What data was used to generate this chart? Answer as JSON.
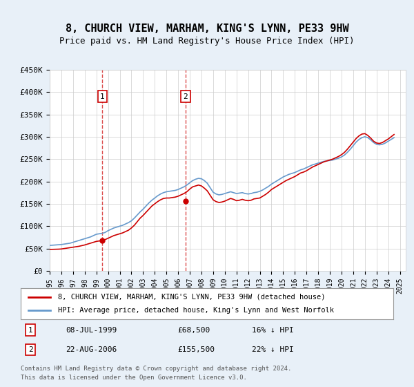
{
  "title": "8, CHURCH VIEW, MARHAM, KING'S LYNN, PE33 9HW",
  "subtitle": "Price paid vs. HM Land Registry's House Price Index (HPI)",
  "ylabel_ticks": [
    "£0",
    "£50K",
    "£100K",
    "£150K",
    "£200K",
    "£250K",
    "£300K",
    "£350K",
    "£400K",
    "£450K"
  ],
  "ytick_values": [
    0,
    50000,
    100000,
    150000,
    200000,
    250000,
    300000,
    350000,
    400000,
    450000
  ],
  "ylim": [
    0,
    450000
  ],
  "xlim_start": 1995.0,
  "xlim_end": 2025.5,
  "xtick_years": [
    1995,
    1996,
    1997,
    1998,
    1999,
    2000,
    2001,
    2002,
    2003,
    2004,
    2005,
    2006,
    2007,
    2008,
    2009,
    2010,
    2011,
    2012,
    2013,
    2014,
    2015,
    2016,
    2017,
    2018,
    2019,
    2020,
    2021,
    2022,
    2023,
    2024,
    2025
  ],
  "red_line_color": "#cc0000",
  "blue_line_color": "#6699cc",
  "background_color": "#e8f0f8",
  "plot_bg_color": "#ffffff",
  "legend_line1": "8, CHURCH VIEW, MARHAM, KING'S LYNN, PE33 9HW (detached house)",
  "legend_line2": "HPI: Average price, detached house, King's Lynn and West Norfolk",
  "note1_num": "1",
  "note1_date": "08-JUL-1999",
  "note1_price": "£68,500",
  "note1_hpi": "16% ↓ HPI",
  "note2_num": "2",
  "note2_date": "22-AUG-2006",
  "note2_price": "£155,500",
  "note2_hpi": "22% ↓ HPI",
  "footer": "Contains HM Land Registry data © Crown copyright and database right 2024.\nThis data is licensed under the Open Government Licence v3.0.",
  "marker1_x": 1999.52,
  "marker1_y": 68500,
  "marker2_x": 2006.64,
  "marker2_y": 155500,
  "hpi_data_x": [
    1995.0,
    1995.25,
    1995.5,
    1995.75,
    1996.0,
    1996.25,
    1996.5,
    1996.75,
    1997.0,
    1997.25,
    1997.5,
    1997.75,
    1998.0,
    1998.25,
    1998.5,
    1998.75,
    1999.0,
    1999.25,
    1999.5,
    1999.75,
    2000.0,
    2000.25,
    2000.5,
    2000.75,
    2001.0,
    2001.25,
    2001.5,
    2001.75,
    2002.0,
    2002.25,
    2002.5,
    2002.75,
    2003.0,
    2003.25,
    2003.5,
    2003.75,
    2004.0,
    2004.25,
    2004.5,
    2004.75,
    2005.0,
    2005.25,
    2005.5,
    2005.75,
    2006.0,
    2006.25,
    2006.5,
    2006.75,
    2007.0,
    2007.25,
    2007.5,
    2007.75,
    2008.0,
    2008.25,
    2008.5,
    2008.75,
    2009.0,
    2009.25,
    2009.5,
    2009.75,
    2010.0,
    2010.25,
    2010.5,
    2010.75,
    2011.0,
    2011.25,
    2011.5,
    2011.75,
    2012.0,
    2012.25,
    2012.5,
    2012.75,
    2013.0,
    2013.25,
    2013.5,
    2013.75,
    2014.0,
    2014.25,
    2014.5,
    2014.75,
    2015.0,
    2015.25,
    2015.5,
    2015.75,
    2016.0,
    2016.25,
    2016.5,
    2016.75,
    2017.0,
    2017.25,
    2017.5,
    2017.75,
    2018.0,
    2018.25,
    2018.5,
    2018.75,
    2019.0,
    2019.25,
    2019.5,
    2019.75,
    2020.0,
    2020.25,
    2020.5,
    2020.75,
    2021.0,
    2021.25,
    2021.5,
    2021.75,
    2022.0,
    2022.25,
    2022.5,
    2022.75,
    2023.0,
    2023.25,
    2023.5,
    2023.75,
    2024.0,
    2024.25,
    2024.5
  ],
  "hpi_data_y": [
    57000,
    57500,
    58000,
    58500,
    59000,
    60000,
    61000,
    62000,
    64000,
    66000,
    68000,
    70000,
    72000,
    74000,
    76000,
    79000,
    82000,
    83000,
    84000,
    86000,
    90000,
    93000,
    96000,
    98000,
    100000,
    102000,
    105000,
    108000,
    112000,
    118000,
    125000,
    132000,
    138000,
    145000,
    152000,
    158000,
    163000,
    168000,
    172000,
    175000,
    177000,
    178000,
    179000,
    180000,
    182000,
    185000,
    188000,
    192000,
    197000,
    202000,
    205000,
    207000,
    206000,
    202000,
    196000,
    186000,
    176000,
    172000,
    170000,
    171000,
    173000,
    175000,
    177000,
    175000,
    173000,
    174000,
    175000,
    173000,
    172000,
    173000,
    175000,
    176000,
    178000,
    181000,
    185000,
    189000,
    194000,
    198000,
    202000,
    206000,
    210000,
    213000,
    216000,
    218000,
    220000,
    223000,
    226000,
    228000,
    231000,
    234000,
    237000,
    239000,
    241000,
    243000,
    245000,
    246000,
    247000,
    248000,
    250000,
    252000,
    255000,
    259000,
    265000,
    272000,
    280000,
    288000,
    294000,
    298000,
    300000,
    298000,
    293000,
    287000,
    283000,
    282000,
    283000,
    286000,
    290000,
    294000,
    298000
  ],
  "red_data_x": [
    1995.0,
    1995.25,
    1995.5,
    1995.75,
    1996.0,
    1996.25,
    1996.5,
    1996.75,
    1997.0,
    1997.25,
    1997.5,
    1997.75,
    1998.0,
    1998.25,
    1998.5,
    1998.75,
    1999.0,
    1999.25,
    1999.5,
    1999.75,
    2000.0,
    2000.25,
    2000.5,
    2000.75,
    2001.0,
    2001.25,
    2001.5,
    2001.75,
    2002.0,
    2002.25,
    2002.5,
    2002.75,
    2003.0,
    2003.25,
    2003.5,
    2003.75,
    2004.0,
    2004.25,
    2004.5,
    2004.75,
    2005.0,
    2005.25,
    2005.5,
    2005.75,
    2006.0,
    2006.25,
    2006.5,
    2006.75,
    2007.0,
    2007.25,
    2007.5,
    2007.75,
    2008.0,
    2008.25,
    2008.5,
    2008.75,
    2009.0,
    2009.25,
    2009.5,
    2009.75,
    2010.0,
    2010.25,
    2010.5,
    2010.75,
    2011.0,
    2011.25,
    2011.5,
    2011.75,
    2012.0,
    2012.25,
    2012.5,
    2012.75,
    2013.0,
    2013.25,
    2013.5,
    2013.75,
    2014.0,
    2014.25,
    2014.5,
    2014.75,
    2015.0,
    2015.25,
    2015.5,
    2015.75,
    2016.0,
    2016.25,
    2016.5,
    2016.75,
    2017.0,
    2017.25,
    2017.5,
    2017.75,
    2018.0,
    2018.25,
    2018.5,
    2018.75,
    2019.0,
    2019.25,
    2019.5,
    2019.75,
    2020.0,
    2020.25,
    2020.5,
    2020.75,
    2021.0,
    2021.25,
    2021.5,
    2021.75,
    2022.0,
    2022.25,
    2022.5,
    2022.75,
    2023.0,
    2023.25,
    2023.5,
    2023.75,
    2024.0,
    2024.25,
    2024.5
  ],
  "red_data_y": [
    48000,
    48200,
    48400,
    48600,
    49000,
    50000,
    51000,
    52000,
    53000,
    54000,
    55000,
    56500,
    58000,
    60000,
    62000,
    64000,
    66000,
    67000,
    68000,
    70000,
    73000,
    76000,
    79000,
    81000,
    83000,
    85000,
    88000,
    91000,
    96000,
    102000,
    110000,
    118000,
    124000,
    131000,
    138000,
    145000,
    150000,
    155000,
    159000,
    162000,
    163000,
    163000,
    164000,
    165000,
    167000,
    170000,
    173000,
    177000,
    183000,
    188000,
    190000,
    192000,
    190000,
    185000,
    179000,
    169000,
    159000,
    155000,
    153000,
    154000,
    156000,
    159000,
    162000,
    160000,
    157000,
    158000,
    160000,
    158000,
    157000,
    158000,
    161000,
    162000,
    163000,
    167000,
    171000,
    176000,
    182000,
    186000,
    190000,
    194000,
    198000,
    202000,
    205000,
    208000,
    211000,
    215000,
    219000,
    221000,
    224000,
    228000,
    232000,
    235000,
    238000,
    241000,
    244000,
    246000,
    248000,
    250000,
    253000,
    256000,
    260000,
    265000,
    272000,
    280000,
    288000,
    296000,
    302000,
    306000,
    307000,
    303000,
    297000,
    290000,
    286000,
    285000,
    287000,
    291000,
    295000,
    300000,
    305000
  ]
}
